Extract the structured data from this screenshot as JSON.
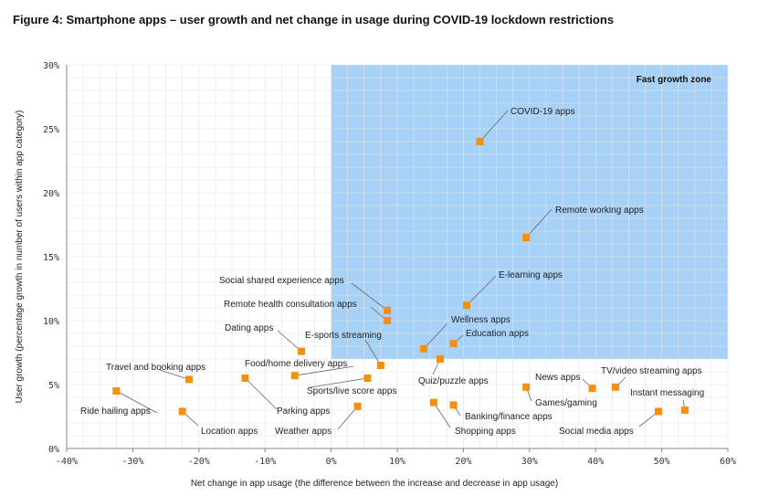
{
  "title": "Figure 4: Smartphone apps – user growth and net change in usage during COVID-19 lockdown restrictions",
  "chart_data": {
    "type": "scatter",
    "xlabel": "Net change in app usage (the difference between the increase and decrease in app usage)",
    "ylabel": "User growth (percentage growth in number of users within app category)",
    "xlim": [
      -40,
      60
    ],
    "ylim": [
      0,
      30
    ],
    "x_ticks": [
      -40,
      -30,
      -20,
      -10,
      0,
      10,
      20,
      30,
      40,
      50,
      60
    ],
    "y_ticks": [
      0,
      5,
      10,
      15,
      20,
      25,
      30
    ],
    "x_tick_labels": [
      "-40%",
      "-30%",
      "-20%",
      "-10%",
      "0%",
      "10%",
      "20%",
      "30%",
      "40%",
      "50%",
      "60%"
    ],
    "y_tick_labels": [
      "0%",
      "5%",
      "10%",
      "15%",
      "20%",
      "25%",
      "30%"
    ],
    "grid": true,
    "zone": {
      "label": "Fast growth zone",
      "x_from": 0,
      "x_to": 60,
      "y_from": 7,
      "y_to": 30,
      "color": "#a8d1f7"
    },
    "marker_color": "#f5900f",
    "points": [
      {
        "label": "COVID-19 apps",
        "x": 22.5,
        "y": 24
      },
      {
        "label": "Remote working apps",
        "x": 29.5,
        "y": 16.5
      },
      {
        "label": "E-learning apps",
        "x": 20.5,
        "y": 11.2
      },
      {
        "label": "Social shared experience apps",
        "x": 8.5,
        "y": 10.8
      },
      {
        "label": "Remote health consultation apps",
        "x": 8.5,
        "y": 10
      },
      {
        "label": "Wellness apps",
        "x": 14,
        "y": 7.8
      },
      {
        "label": "Education apps",
        "x": 18.5,
        "y": 8.2
      },
      {
        "label": "Dating apps",
        "x": -4.5,
        "y": 7.6
      },
      {
        "label": "E-sports streaming",
        "x": 7.5,
        "y": 6.5
      },
      {
        "label": "Quiz/puzzle apps",
        "x": 16.5,
        "y": 7
      },
      {
        "label": "Food/home delivery apps",
        "x": -5.5,
        "y": 5.7
      },
      {
        "label": "Sports/live score apps",
        "x": 5.5,
        "y": 5.5
      },
      {
        "label": "Travel and booking apps",
        "x": -21.5,
        "y": 5.4
      },
      {
        "label": "Ride hailing apps",
        "x": -32.5,
        "y": 4.5
      },
      {
        "label": "Parking apps",
        "x": -13,
        "y": 5.5
      },
      {
        "label": "Location apps",
        "x": -22.5,
        "y": 2.9
      },
      {
        "label": "Weather apps",
        "x": 4,
        "y": 3.3
      },
      {
        "label": "Shopping apps",
        "x": 15.5,
        "y": 3.6
      },
      {
        "label": "Banking/finance apps",
        "x": 18.5,
        "y": 3.4
      },
      {
        "label": "News apps",
        "x": 39.5,
        "y": 4.7
      },
      {
        "label": "Games/gaming",
        "x": 29.5,
        "y": 4.8
      },
      {
        "label": "TV/video streaming apps",
        "x": 43,
        "y": 4.8
      },
      {
        "label": "Instant messaging",
        "x": 53.5,
        "y": 3
      },
      {
        "label": "Social media apps",
        "x": 49.5,
        "y": 2.9
      }
    ]
  }
}
